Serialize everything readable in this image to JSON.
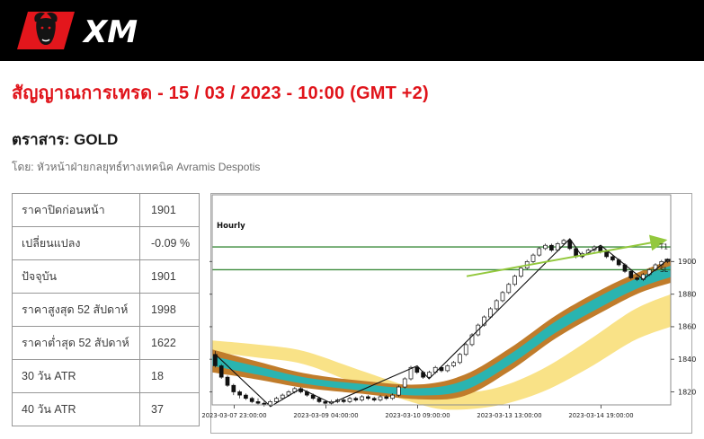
{
  "header": {
    "brand": "XM",
    "logo_icon": "bull-icon"
  },
  "page": {
    "title": "สัญญาณการเทรด - 15 / 03 / 2023 - 10:00 (GMT +2)",
    "instrument_heading": "ตราสาร: GOLD",
    "byline": "โดย: หัวหน้าฝ่ายกลยุทธ์ทางเทคนิค Avramis Despotis"
  },
  "stats_table": {
    "rows": [
      {
        "label": "ราคาปิดก่อนหน้า",
        "value": "1901"
      },
      {
        "label": "เปลี่ยนแปลง",
        "value": "-0.09 %"
      },
      {
        "label": "ปัจจุบัน",
        "value": "1901"
      },
      {
        "label": "ราคาสูงสุด 52 สัปดาห์",
        "value": "1998"
      },
      {
        "label": "ราคาต่ำสุด 52 สัปดาห์",
        "value": "1622"
      },
      {
        "label": "30 วัน ATR",
        "value": "18"
      },
      {
        "label": "40 วัน ATR",
        "value": "37"
      }
    ]
  },
  "chart_data": {
    "type": "candlestick",
    "timeframe_label": "Hourly",
    "y_range": [
      1812,
      1941
    ],
    "y_ticks": [
      1900,
      1880,
      1860,
      1840,
      1820
    ],
    "x_ticks": [
      {
        "label": "2023-03-07 23:00:00",
        "pos": 0.048
      },
      {
        "label": "2023-03-09 04:00:00",
        "pos": 0.248
      },
      {
        "label": "2023-03-10 09:00:00",
        "pos": 0.448
      },
      {
        "label": "2023-03-13 13:00:00",
        "pos": 0.648
      },
      {
        "label": "2023-03-14 19:00:00",
        "pos": 0.848
      }
    ],
    "levels": [
      {
        "name": "T1",
        "price": 1909,
        "color": "#3a8a3a"
      },
      {
        "name": "SL",
        "price": 1895,
        "color": "#3a8a3a"
      }
    ],
    "trendline": {
      "from": [
        0.555,
        1891
      ],
      "to": [
        0.985,
        1913
      ],
      "color": "#93c83d"
    },
    "zigzag": [
      [
        0.007,
        1843
      ],
      [
        0.127,
        1811
      ],
      [
        0.193,
        1822
      ],
      [
        0.26,
        1813
      ],
      [
        0.447,
        1836
      ],
      [
        0.473,
        1828
      ],
      [
        0.78,
        1914
      ],
      [
        0.807,
        1903
      ],
      [
        0.847,
        1910
      ],
      [
        0.94,
        1889
      ],
      [
        0.993,
        1901
      ]
    ],
    "bands": {
      "yellow": {
        "color": "#f9e287",
        "points": [
          [
            0,
            1848,
            3.5
          ],
          [
            0.1,
            1845,
            4
          ],
          [
            0.2,
            1841,
            4
          ],
          [
            0.32,
            1829,
            4.5
          ],
          [
            0.45,
            1817,
            4.5
          ],
          [
            0.52,
            1814,
            5
          ],
          [
            0.62,
            1817,
            5.5
          ],
          [
            0.72,
            1827,
            7
          ],
          [
            0.82,
            1843,
            8.5
          ],
          [
            0.92,
            1861,
            9.5
          ],
          [
            1,
            1870,
            10
          ]
        ]
      },
      "brown": {
        "color": "#c07c2b",
        "points": [
          [
            0,
            1839,
            7
          ],
          [
            0.1,
            1833,
            5.5
          ],
          [
            0.2,
            1827,
            4.5
          ],
          [
            0.32,
            1823,
            4
          ],
          [
            0.45,
            1820,
            4.5
          ],
          [
            0.55,
            1824,
            6.5
          ],
          [
            0.65,
            1840,
            7
          ],
          [
            0.75,
            1860,
            7
          ],
          [
            0.85,
            1876,
            7
          ],
          [
            0.93,
            1887,
            6.5
          ],
          [
            1,
            1894,
            7
          ]
        ]
      },
      "cyan": {
        "color": "#2ab4b0",
        "points": [
          [
            0,
            1839,
            3
          ],
          [
            0.1,
            1833,
            2.5
          ],
          [
            0.2,
            1827,
            2
          ],
          [
            0.32,
            1823,
            2
          ],
          [
            0.45,
            1820,
            2.2
          ],
          [
            0.55,
            1824,
            3
          ],
          [
            0.65,
            1840,
            3.2
          ],
          [
            0.75,
            1860,
            3.5
          ],
          [
            0.85,
            1876,
            3.5
          ],
          [
            0.93,
            1887,
            3.2
          ],
          [
            1,
            1894,
            3.5
          ]
        ]
      }
    },
    "candles": [
      [
        1843,
        1845,
        1835,
        1836
      ],
      [
        1836,
        1837,
        1828,
        1829
      ],
      [
        1829,
        1830,
        1823,
        1824
      ],
      [
        1824,
        1825,
        1818,
        1820
      ],
      [
        1820,
        1821,
        1816,
        1818
      ],
      [
        1818,
        1819,
        1815,
        1816
      ],
      [
        1816,
        1817,
        1813,
        1814
      ],
      [
        1814,
        1816,
        1812,
        1813
      ],
      [
        1813,
        1814,
        1811,
        1812
      ],
      [
        1812,
        1815,
        1811,
        1814
      ],
      [
        1814,
        1817,
        1813,
        1816
      ],
      [
        1816,
        1819,
        1815,
        1818
      ],
      [
        1818,
        1821,
        1817,
        1820
      ],
      [
        1820,
        1823,
        1819,
        1822
      ],
      [
        1822,
        1823,
        1819,
        1820
      ],
      [
        1820,
        1821,
        1817,
        1818
      ],
      [
        1818,
        1819,
        1815,
        1816
      ],
      [
        1816,
        1817,
        1813,
        1814
      ],
      [
        1814,
        1815,
        1812,
        1813
      ],
      [
        1813,
        1815,
        1812,
        1814
      ],
      [
        1814,
        1816,
        1813,
        1815
      ],
      [
        1815,
        1816,
        1813,
        1814
      ],
      [
        1814,
        1817,
        1813,
        1816
      ],
      [
        1816,
        1817,
        1814,
        1815
      ],
      [
        1815,
        1818,
        1814,
        1817
      ],
      [
        1817,
        1818,
        1815,
        1816
      ],
      [
        1816,
        1817,
        1814,
        1815
      ],
      [
        1815,
        1818,
        1814,
        1817
      ],
      [
        1817,
        1818,
        1815,
        1816
      ],
      [
        1816,
        1819,
        1815,
        1818
      ],
      [
        1818,
        1824,
        1817,
        1823
      ],
      [
        1823,
        1829,
        1822,
        1828
      ],
      [
        1828,
        1836,
        1827,
        1835
      ],
      [
        1835,
        1836,
        1831,
        1832
      ],
      [
        1832,
        1833,
        1828,
        1829
      ],
      [
        1829,
        1833,
        1828,
        1832
      ],
      [
        1832,
        1836,
        1831,
        1835
      ],
      [
        1835,
        1836,
        1832,
        1833
      ],
      [
        1833,
        1837,
        1832,
        1836
      ],
      [
        1836,
        1839,
        1835,
        1838
      ],
      [
        1838,
        1844,
        1837,
        1843
      ],
      [
        1843,
        1850,
        1842,
        1849
      ],
      [
        1849,
        1856,
        1848,
        1855
      ],
      [
        1855,
        1862,
        1854,
        1861
      ],
      [
        1861,
        1867,
        1860,
        1866
      ],
      [
        1866,
        1872,
        1865,
        1871
      ],
      [
        1871,
        1877,
        1870,
        1876
      ],
      [
        1876,
        1882,
        1875,
        1881
      ],
      [
        1881,
        1887,
        1880,
        1886
      ],
      [
        1886,
        1892,
        1885,
        1891
      ],
      [
        1891,
        1897,
        1890,
        1896
      ],
      [
        1896,
        1901,
        1895,
        1900
      ],
      [
        1900,
        1905,
        1899,
        1904
      ],
      [
        1904,
        1909,
        1903,
        1908
      ],
      [
        1908,
        1911,
        1907,
        1910
      ],
      [
        1910,
        1911,
        1906,
        1907
      ],
      [
        1907,
        1912,
        1906,
        1911
      ],
      [
        1911,
        1914,
        1910,
        1913
      ],
      [
        1913,
        1914,
        1907,
        1908
      ],
      [
        1908,
        1909,
        1902,
        1903
      ],
      [
        1903,
        1906,
        1902,
        1905
      ],
      [
        1905,
        1908,
        1904,
        1907
      ],
      [
        1907,
        1910,
        1906,
        1909
      ],
      [
        1909,
        1910,
        1905,
        1906
      ],
      [
        1906,
        1907,
        1902,
        1903
      ],
      [
        1903,
        1904,
        1900,
        1901
      ],
      [
        1901,
        1902,
        1897,
        1898
      ],
      [
        1898,
        1899,
        1893,
        1894
      ],
      [
        1894,
        1895,
        1889,
        1890
      ],
      [
        1890,
        1891,
        1888,
        1889
      ],
      [
        1889,
        1893,
        1888,
        1892
      ],
      [
        1892,
        1896,
        1891,
        1895
      ],
      [
        1895,
        1899,
        1894,
        1898
      ],
      [
        1898,
        1901,
        1897,
        1900
      ],
      [
        1900,
        1902,
        1899,
        1901
      ]
    ],
    "last_price_marker": {
      "pos": 0.993,
      "price": 1901
    }
  }
}
